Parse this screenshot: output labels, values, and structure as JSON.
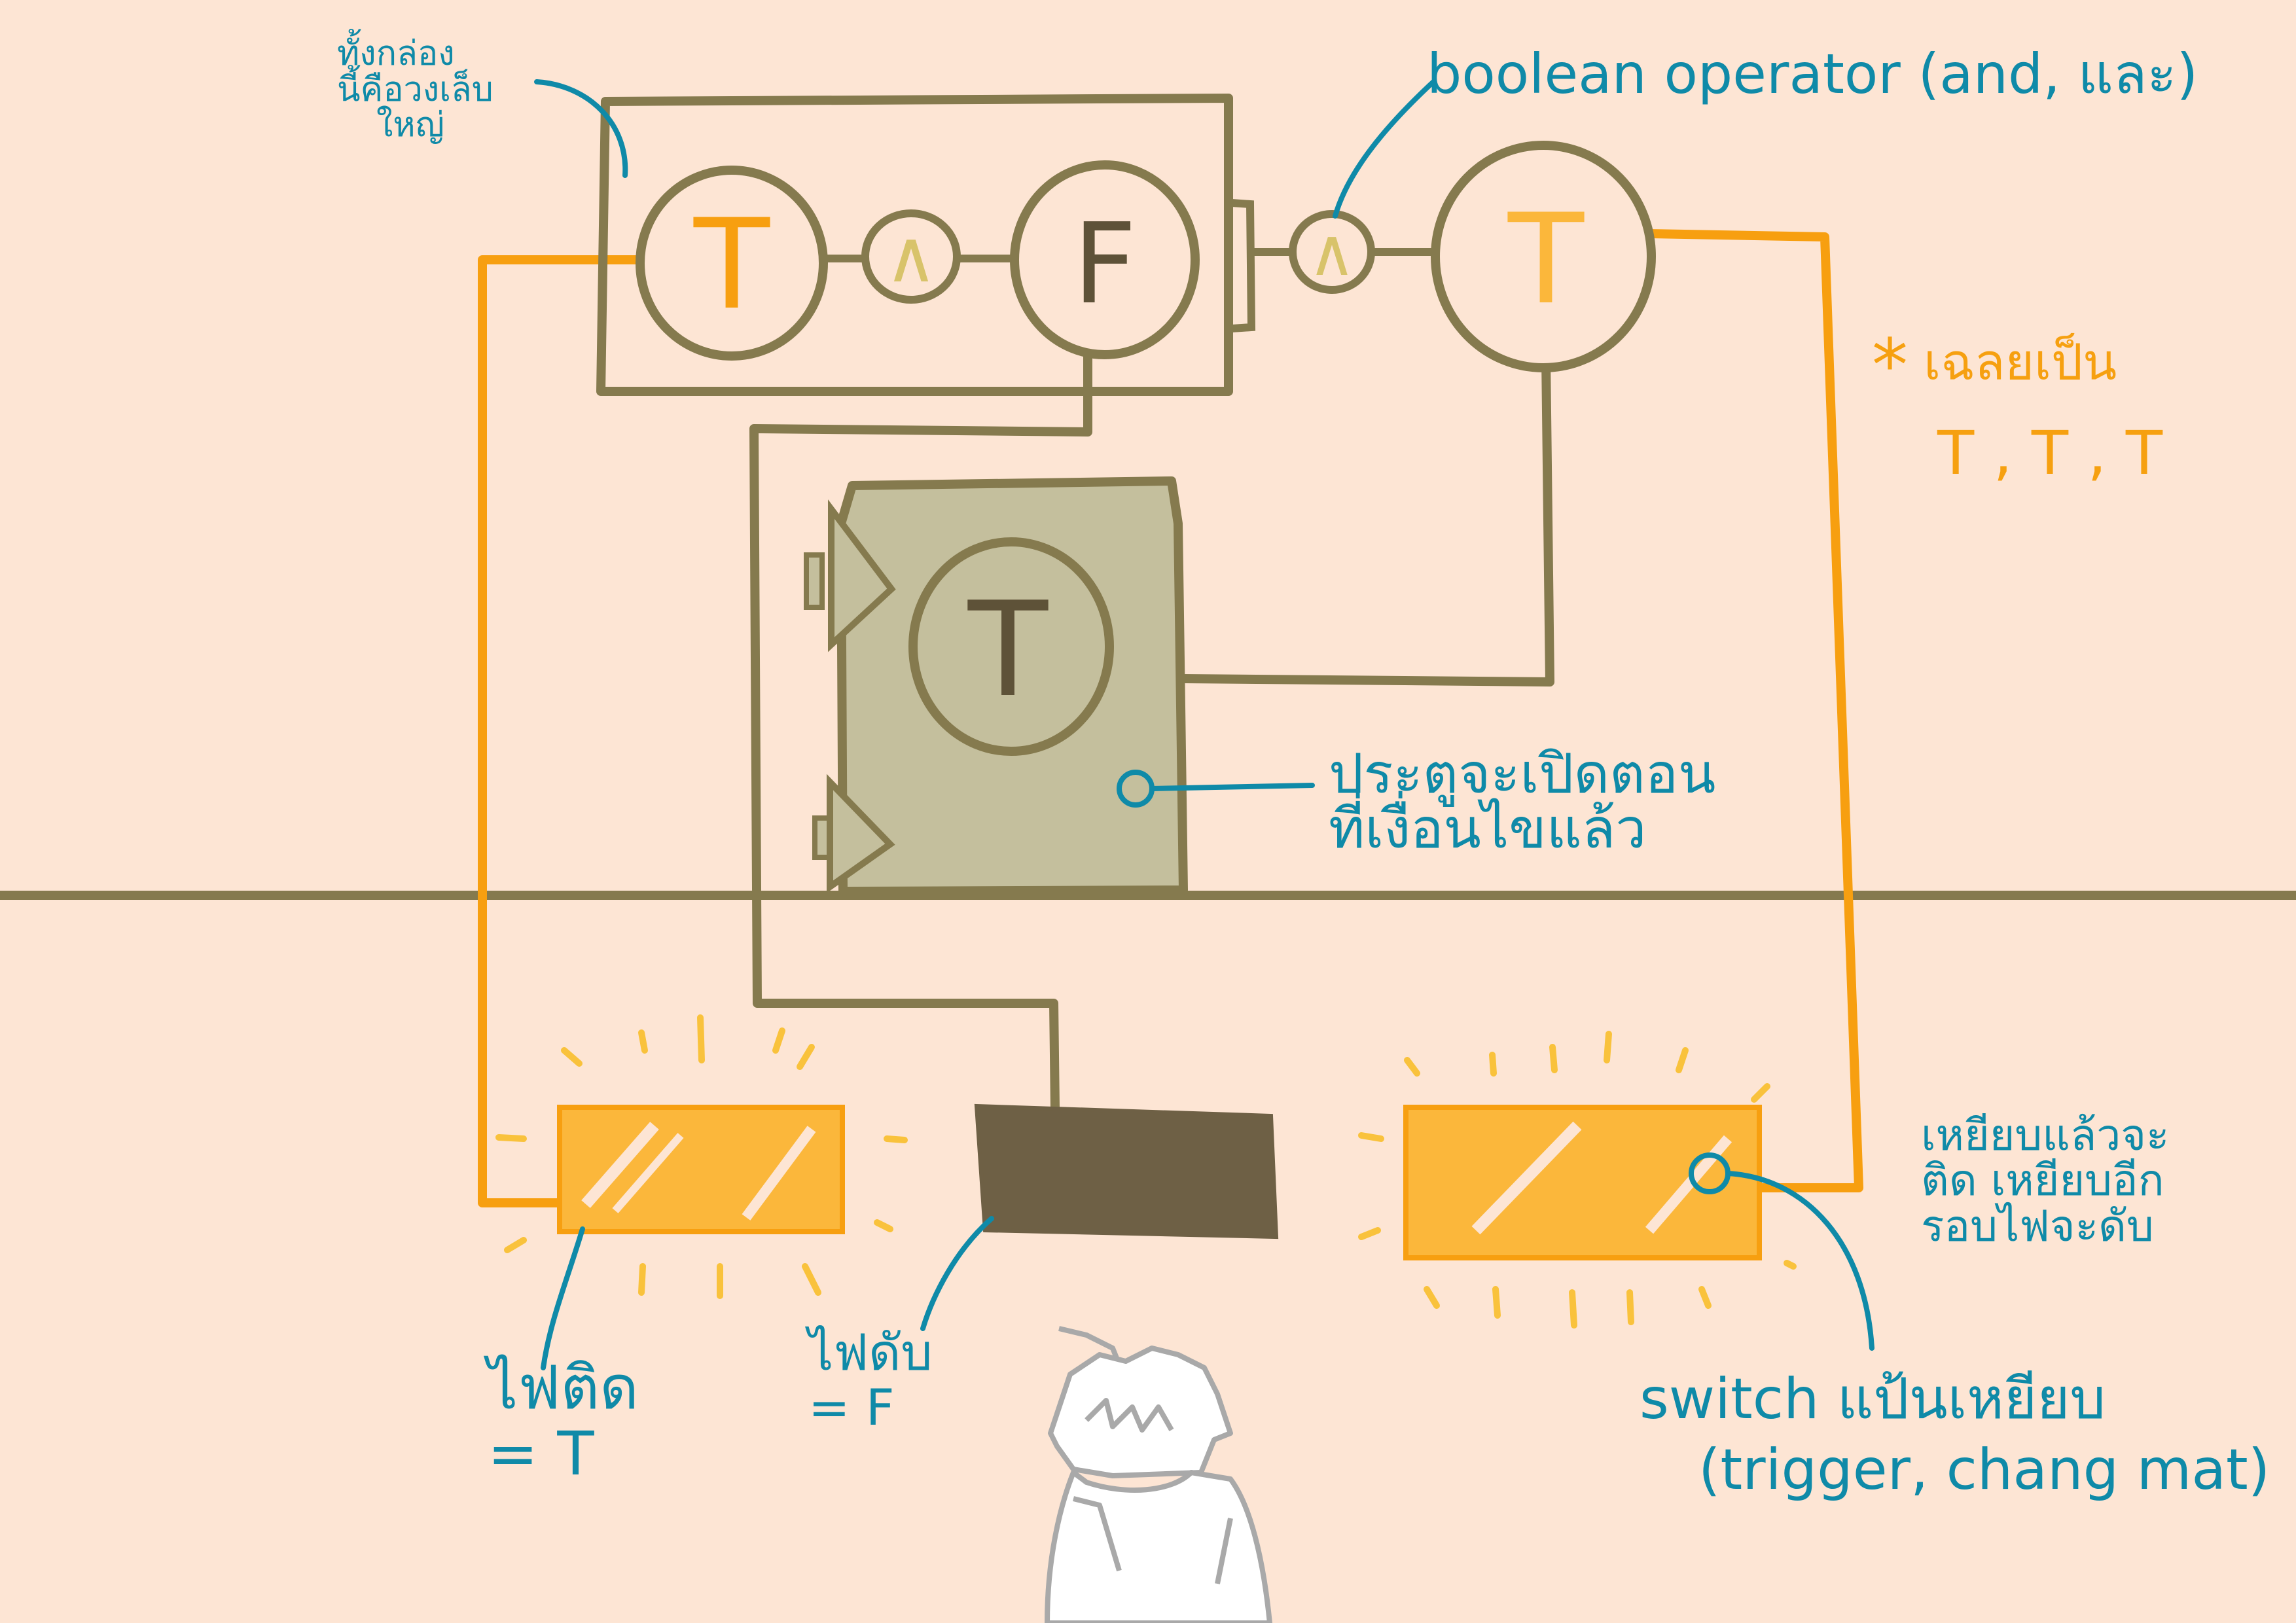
{
  "colors": {
    "background": "#fde5d4",
    "wire_olive": "#857a4e",
    "wire_orange": "#f79f10",
    "annotation": "#0f8aa8",
    "answer": "#f6a010",
    "door_fill": "#c4bf9d",
    "lamp_on": "#fbb73b",
    "lamp_off": "#6e6045"
  },
  "nodes": {
    "t1": "T",
    "op1": "∧",
    "f1": "F",
    "op2": "∧",
    "t2": "T",
    "door_value": "T"
  },
  "notes": {
    "box_note_lines": [
      "ทั้งกล่อง",
      "นี้คือวงเล็บ",
      "ใหญ่"
    ],
    "operator_note": "boolean operator (and, และ)",
    "answer_star": "*",
    "answer_label": "เฉลยเป็น",
    "answer_values": "T , T , T",
    "door_note_lines": [
      "ประตูจะเปิดตอน",
      "ที่เงื่อนไขแล้ว"
    ],
    "switch_behaviour_lines": [
      "เหยียบแล้วจะ",
      "ติด เหยียบอีก",
      "รอบไฟจะดับ"
    ],
    "lamp_on_lines": [
      "ไฟติด",
      "= T"
    ],
    "lamp_off_lines": [
      "ไฟดับ",
      "= F"
    ],
    "switch_note_lines": [
      "switch แป้นเหยียบ",
      "(trigger, chang mat)"
    ]
  }
}
